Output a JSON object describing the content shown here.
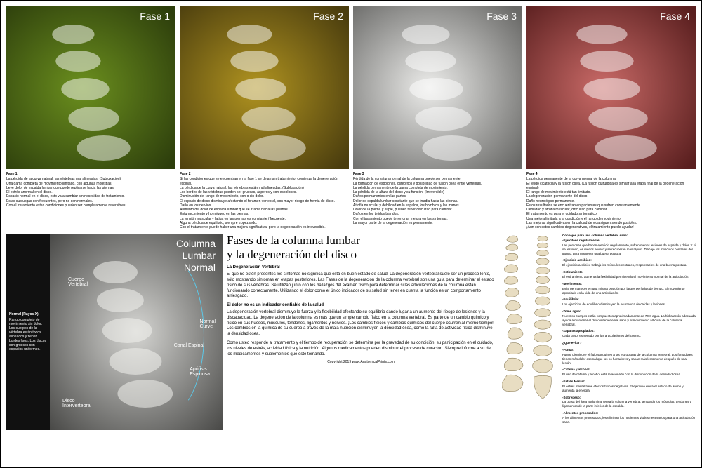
{
  "phases": [
    {
      "label": "Fase 1",
      "tint": "#6b8f1e",
      "tintDark": "#2d3e0c",
      "heading": "Fase 1",
      "body": "La pérdida de la curva natural, las vértebras mal alineadas. (Subluxación)\nUna gama completa de movimiento limitado, con algunas molestias.\nLeve dolor de espalda lumbar que puede replicarse hacia las piernas.\nEl estrés anormal en el disco.\nEspacio normal en el disco, esto va a cambiar sin necesidad de tratamiento.\nEstas subluxgas son frecuentes, pero no son normales.\nCon el tratamiento estas condiciones pueden ser completamente reversibles."
    },
    {
      "label": "Fase 2",
      "tint": "#b09320",
      "tintDark": "#4a3d0e",
      "heading": "Fase 2",
      "body": "Si las condiciones que se encuentran en la fase 1 se dejan sin tratamiento, comienza la degeneración espinal.\nLa pérdida de la curva natural, las vértebras están mal alineadas. (Subluxación)\nLos bordes de las vértebras pueden ser gruesas, ásperos y con espolones.\nDisminución del rango de movimiento, con o sin dolor.\nEl espacio de disco disminuye afectando el foramen vertebral, con mayor riesgo de hernia de disco.\nDaño en los nervios.\nAumento del dolor de espalda lumbar que se irradia hacia las piernas.\nEntumecimiento y hormigueo en las piernas.\nLa tensión muscular y fatiga en las piernas es constante / frecuente.\nAlguna pérdida de equilibrio, siempre tropezando.\nCon el tratamiento puede haber una mejora significativa, pero la degeneración es irreversible."
    },
    {
      "label": "Fase 3",
      "tint": "#ececea",
      "tintDark": "#6a6a68",
      "heading": "Fase 3",
      "body": "Pérdida de la curvatura normal de la columna puede ser permanente.\nLa formación de espolones, osteofitos y posibilidad de fusión ósea entre vértebras.\nLa pérdida permanente de la gama completa de movimiento.\nLa pérdida de la altura del disco y su función. (Irreversible)\nDaños permanentes en las partes.\nDolor de espalda lumbar constante que se irradia hacia las piernas.\nAtrofia muscular y debilidad en la espalda, los hombros y las manos.\nDolor de la pierna y el pie, pueden tener dificultad para caminar.\nDaños en los tejidos blandos.\nCon el tratamiento puede tener gran mejora en los síntomas.\nLa mayor parte de la degeneración es permanente."
    },
    {
      "label": "Fase 4",
      "tint": "#c96a67",
      "tintDark": "#5a1f1f",
      "heading": "Fase 4",
      "body": "La pérdida permanente de la curva normal de la columna.\nEl tejido cicatricial y la fusión ósea. (La fusión quirúrgica es similar a la etapa final de la degeneración espinal)\nEl rango de movimiento está tan limitado.\nLa degeneración permanente del disco.\nDaño neurológico permanente.\nEstos resultados se encuentran en pacientes que sufren constantemente.\nDebilidad y atrofia muscular, dificultad para caminar.\nEl tratamiento es para el cuidado sintomático.\nUna mejora limitada a la condición y el rango de movimiento.\nLas mejoras significativas en la calidad de vida siguen siendo posibles.\n¡Aún con estos cambios degenerativos, el tratamiento puede ayudar!"
    }
  ],
  "normal": {
    "title": "Columna\nLumbar\nNormal",
    "sideHeading": "Normal (Rayos X)",
    "sideBody": "Rango completo de movimiento sin dolor. Los cuerpos de la vértebra están todos alineados y tienen bordes lisos. Los discos son gruesos con espacios uniformes.",
    "labels": {
      "cuerpo": "Cuerpo\nVertebral",
      "canal": "Canal Espinal",
      "apofisis": "Apófisis\nEspinosa",
      "disco": "Disco\nIntervertebral",
      "curve": "Normal\nCurve"
    }
  },
  "main": {
    "title": "Fases de la columna lumbar\ny la degeneración del disco",
    "s1h": "La Degeneración Vertebral",
    "s1": "El que no estén presentes los síntomas no significa que está en buen estado de salud. La degeneración vertebral suele ser un proceso lento, sólo mostrando síntomas en etapas posteriores. Las Fases de la degeneración de la columna vertebral son una guía para determinar el estado físico de sus vértebras. Se utilizan junto con los hallazgos del examen físico para determinar si las articulaciones de la columna están funcionando correctamente. Utilizando el dolor como el único indicador de su salud sin tener en cuenta la función es un comportamiento arriesgado.",
    "s2h": "El dolor no es un indicador confiable de la salud",
    "s2": "La degeneración vertebral disminuye la fuerza y la flexibilidad afectando su equilibrio dando lugar a un aumento del riesgo de lesiones y la discapacidad. La degeneración de la columna es más que un simple cambio físico en la columna vertebral. Es parte de un cambio químico y físico en sus huesos, músculos, tendones, ligamentos y nervios. ¡Los cambios físicos y cambios químicos del cuerpo ocurren al mismo tiempo! Los cambios en la química de su cuerpo a través de la mala nutrición disminuyen la densidad ósea, como la falta de actividad física disminuye la densidad ósea.",
    "s3": "Como usted responde al tratamiento y el tiempo de recuperación se determina por la gravedad de su condición, su participación en el cuidado, los niveles de estrés, actividad física y la nutrición. Algunos medicamentos pueden disminuir el proceso de curación. Siempre informe a su de los medicamentos y suplementos que esté tomando.",
    "copyright": "Copyright 2019 www.AnatomicalPrints.com"
  },
  "tips": {
    "heading": "Consejos para una columna vertebral sana:",
    "items": [
      {
        "h": "-Ejercitese regularmente:",
        "b": "Las personas que hacen ejercicio regularmente, sufren menos lesiones de espalda y dolor. Y si se lesionan, es menos severo y se recuperan más rápido. Trabaje los músculos centrales del tronco, para mantener una buena postura."
      },
      {
        "h": "-Ejercicio aeróbico:",
        "b": "El ejercicio aeróbico trabaja los músculos centrales, responsables de una buena postura."
      },
      {
        "h": "-Estiramiento:",
        "b": "El estiramiento aumenta la flexibilidad permitiendo el movimiento normal de la articulación."
      },
      {
        "h": "-Movimiento:",
        "b": "Evite permanecer en una misma posición por largos períodos de tiempo. El movimiento apropiado es la vida de una articulación."
      },
      {
        "h": "-Equilibrio:",
        "b": "Los ejercicios de equilibrio disminuyen la ocurrencia de caídas y lesiones."
      },
      {
        "h": "-Tome agua:",
        "b": "Nuestros cuerpos están compuestos aproximadamente de 70% agua. La hidratación adecuada ayuda a mantener el disco intervertebral sano y el movimiento articular de la columna vertebral."
      },
      {
        "h": "-Zapatos apropiados:",
        "b": "Cada paso, es sentido por las articulaciones del cuerpo."
      },
      {
        "h": "¿Que evitar?",
        "b": ""
      },
      {
        "h": "-Fumar:",
        "b": "Fumar disminuye el flujo sanguíneo a las estructuras de la columna vertebral. Los fumadores tienen más dolor espinal que los no fumadores y sanan más lentamente después de una lesión."
      },
      {
        "h": "-Cafeína y alcohol:",
        "b": "El uso de cafeína y alcohol está relacionado con la disminución de la densidad ósea."
      },
      {
        "h": "-Estrés Mental:",
        "b": "El estrés mental tiene efectos físicos negativos. El ejercicio eleva el estado de ánimo y aumenta la energía."
      },
      {
        "h": "-Sobrepeso:",
        "b": "La grasa del área abdominal tensa la columna vertebral, tensando los músculos, tendones y ligamentos de la parte inferior de la espalda."
      },
      {
        "h": "-Alimentos procesados:",
        "b": "A los alimentos procesados, les eliminan los nutrientes vitales necesarios para una articulación sana."
      }
    ]
  }
}
